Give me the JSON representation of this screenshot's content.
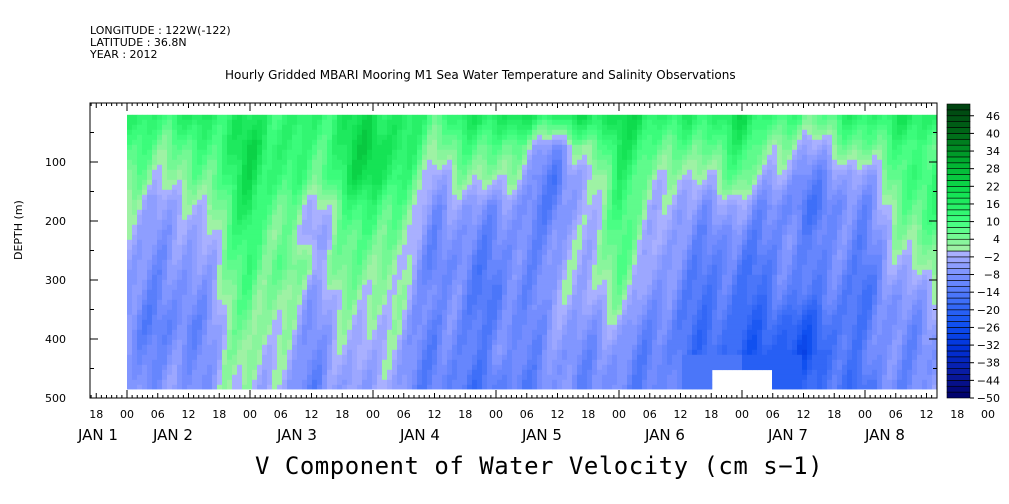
{
  "header": {
    "longitude": "LONGITUDE : 122W(-122)",
    "latitude": "LATITUDE : 36.8N",
    "year": "YEAR : 2012"
  },
  "chart_data": {
    "type": "heatmap",
    "title": "Hourly Gridded MBARI Mooring M1 Sea Water Temperature and Salinity Observations",
    "xlabel": "V Component of Water Velocity (cm s-1)",
    "xlabel_display": "V Component of Water Velocity (cm s−1)",
    "ylabel": "DEPTH (m)",
    "ylim": [
      500,
      0
    ],
    "yticks": [
      100,
      200,
      300,
      400,
      500
    ],
    "x_hour_ticks": [
      "18",
      "00",
      "06",
      "12",
      "18",
      "00",
      "06",
      "12",
      "18",
      "00",
      "06",
      "12",
      "18",
      "00",
      "06",
      "12",
      "18",
      "00",
      "06",
      "12",
      "18",
      "00",
      "06",
      "12",
      "18",
      "00",
      "06",
      "12",
      "18",
      "00",
      "06",
      "12"
    ],
    "x_date_labels": [
      "JAN  1",
      "JAN  2",
      "JAN  3",
      "JAN  4",
      "JAN  5",
      "JAN  6",
      "JAN  7",
      "JAN  8"
    ],
    "x_units": "hours since JAN 1 00:00 2012",
    "xlim": [
      -7.2,
      157.7
    ],
    "times_hours": [
      0,
      12,
      24,
      36,
      48,
      60,
      72,
      84,
      96,
      108,
      120,
      132,
      144,
      156
    ],
    "depths_m": [
      25,
      75,
      125,
      175,
      225,
      275,
      325,
      375,
      425,
      475
    ],
    "values": [
      [
        12,
        14,
        16,
        12,
        20,
        10,
        18,
        14,
        20,
        12,
        18,
        6,
        14,
        16
      ],
      [
        8,
        6,
        20,
        8,
        24,
        4,
        10,
        -8,
        16,
        4,
        12,
        -4,
        6,
        10
      ],
      [
        4,
        2,
        18,
        6,
        22,
        -2,
        4,
        -14,
        12,
        -2,
        6,
        -10,
        -4,
        14
      ],
      [
        -2,
        -4,
        16,
        -2,
        14,
        -6,
        -6,
        -12,
        10,
        -6,
        -4,
        -14,
        -8,
        12
      ],
      [
        -4,
        -6,
        12,
        -4,
        10,
        -8,
        -10,
        -8,
        8,
        -8,
        -10,
        -10,
        -10,
        8
      ],
      [
        -6,
        -8,
        10,
        2,
        6,
        -10,
        -12,
        -6,
        6,
        -10,
        -14,
        -10,
        -12,
        4
      ],
      [
        -8,
        -10,
        8,
        -4,
        4,
        -8,
        -14,
        -4,
        2,
        -12,
        -16,
        -12,
        -14,
        -2
      ],
      [
        -10,
        -12,
        6,
        -6,
        2,
        -10,
        -12,
        -6,
        -4,
        -14,
        -18,
        -20,
        -12,
        -6
      ],
      [
        -8,
        -10,
        4,
        -8,
        0,
        -12,
        -10,
        -8,
        -8,
        -14,
        -20,
        -24,
        -10,
        -8
      ],
      [
        -6,
        -8,
        2,
        -10,
        -2,
        -12,
        -14,
        -8,
        -10,
        -12,
        null,
        -18,
        -14,
        -6
      ]
    ],
    "colorbar": {
      "min": -50,
      "max": 50,
      "step": 2,
      "labels": [
        "46",
        "40",
        "34",
        "28",
        "22",
        "16",
        "10",
        "4",
        "-2",
        "-8",
        "-14",
        "-20",
        "-26",
        "-32",
        "-38",
        "-44",
        "-50"
      ],
      "labels_display": [
        "46",
        "40",
        "34",
        "28",
        "22",
        "16",
        "10",
        "4",
        "−2",
        "−8",
        "−14",
        "−20",
        "−26",
        "−32",
        "−38",
        "−44",
        "−50"
      ],
      "colors": [
        "#000066",
        "#0a1aa0",
        "#0030d8",
        "#1050f0",
        "#4070f8",
        "#7890ff",
        "#b0b4ff",
        "#a8f0a8",
        "#40ff80",
        "#10e050",
        "#00b030",
        "#006818",
        "#004010"
      ]
    },
    "missing_color": "#ffffff",
    "grid": false
  }
}
